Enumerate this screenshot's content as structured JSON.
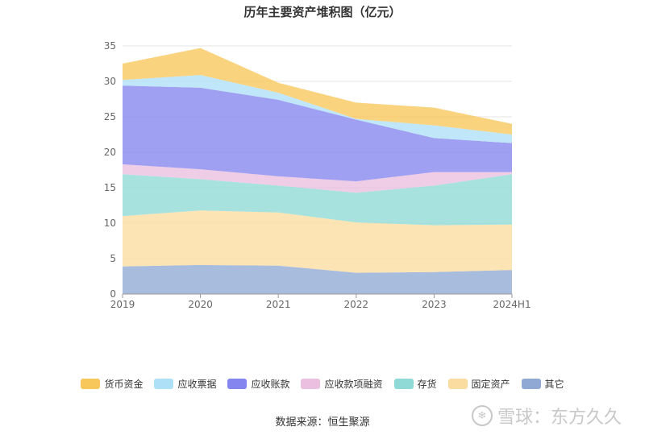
{
  "chart_data": {
    "type": "area",
    "stacked": true,
    "title": "历年主要资产堆积图（亿元）",
    "categories": [
      "2019",
      "2020",
      "2021",
      "2022",
      "2023",
      "2024H1"
    ],
    "y_ticks": [
      "0",
      "5",
      "10",
      "15",
      "20",
      "25",
      "30",
      "35"
    ],
    "ylim": [
      0,
      35
    ],
    "grid": true,
    "legend_position": "bottom",
    "series": [
      {
        "name": "其它",
        "color": "#8fa9d4",
        "values": [
          3.9,
          4.1,
          4.0,
          3.0,
          3.1,
          3.4
        ]
      },
      {
        "name": "固定资产",
        "color": "#fbdca0",
        "values": [
          7.1,
          7.7,
          7.5,
          7.1,
          6.6,
          6.4
        ]
      },
      {
        "name": "存货",
        "color": "#8fdad6",
        "values": [
          5.9,
          4.4,
          3.8,
          4.2,
          5.6,
          7.1
        ]
      },
      {
        "name": "应收款项融资",
        "color": "#ebbfe0",
        "values": [
          1.4,
          1.4,
          1.3,
          1.6,
          1.9,
          0.3
        ]
      },
      {
        "name": "应收账款",
        "color": "#8585ef",
        "values": [
          11.1,
          11.5,
          10.8,
          8.7,
          4.8,
          4.1
        ]
      },
      {
        "name": "应收票据",
        "color": "#aee0f7",
        "values": [
          0.8,
          1.8,
          1.0,
          0.1,
          1.8,
          1.2
        ]
      },
      {
        "name": "货币资金",
        "color": "#f8c75b",
        "values": [
          2.3,
          3.8,
          1.4,
          2.3,
          2.5,
          1.5
        ]
      }
    ]
  },
  "footer": {
    "source": "数据来源：恒生聚源",
    "watermark": "雪球：东方久久"
  }
}
